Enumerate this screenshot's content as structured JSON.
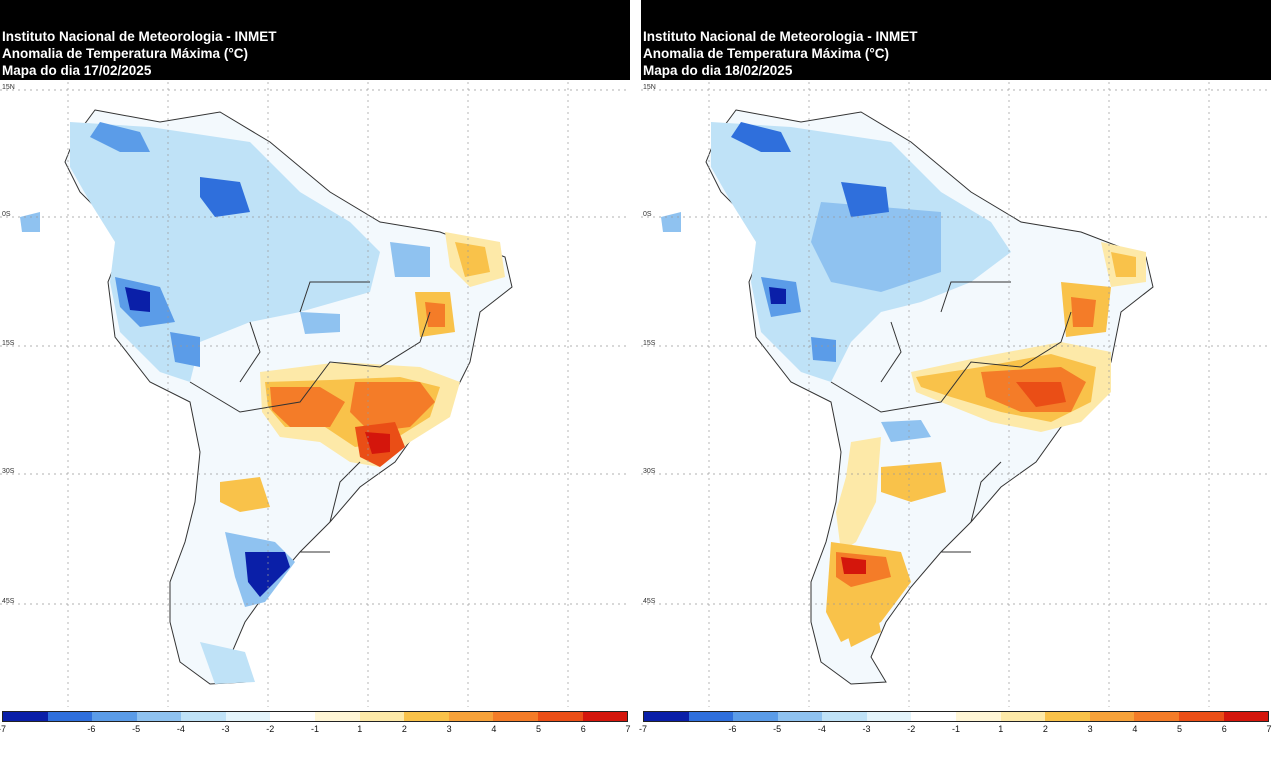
{
  "panels": [
    {
      "institution": "Instituto Nacional de Meteorologia - INMET",
      "product": "Anomalia de Temperatura Máxima (°C)",
      "date_label": "Mapa do dia 17/02/2025"
    },
    {
      "institution": "Instituto Nacional de Meteorologia - INMET",
      "product": "Anomalia de Temperatura Máxima (°C)",
      "date_label": "Mapa do dia 18/02/2025"
    }
  ],
  "lat_labels": [
    "15N",
    "0S",
    "15S",
    "30S",
    "45S"
  ],
  "colorbar": {
    "colors": [
      "#0a1fa8",
      "#2f6fdc",
      "#5b9ce8",
      "#8fc2f0",
      "#bfe2f7",
      "#e4f4fb",
      "#ffffff",
      "#fff6d6",
      "#fde9a8",
      "#f9c24a",
      "#f7a23a",
      "#f47c28",
      "#ea4e16",
      "#d4160c"
    ],
    "tick_labels": [
      "-7",
      "-6",
      "-5",
      "-4",
      "-3",
      "-2",
      "-1",
      "1",
      "2",
      "3",
      "4",
      "5",
      "6",
      "7"
    ]
  }
}
